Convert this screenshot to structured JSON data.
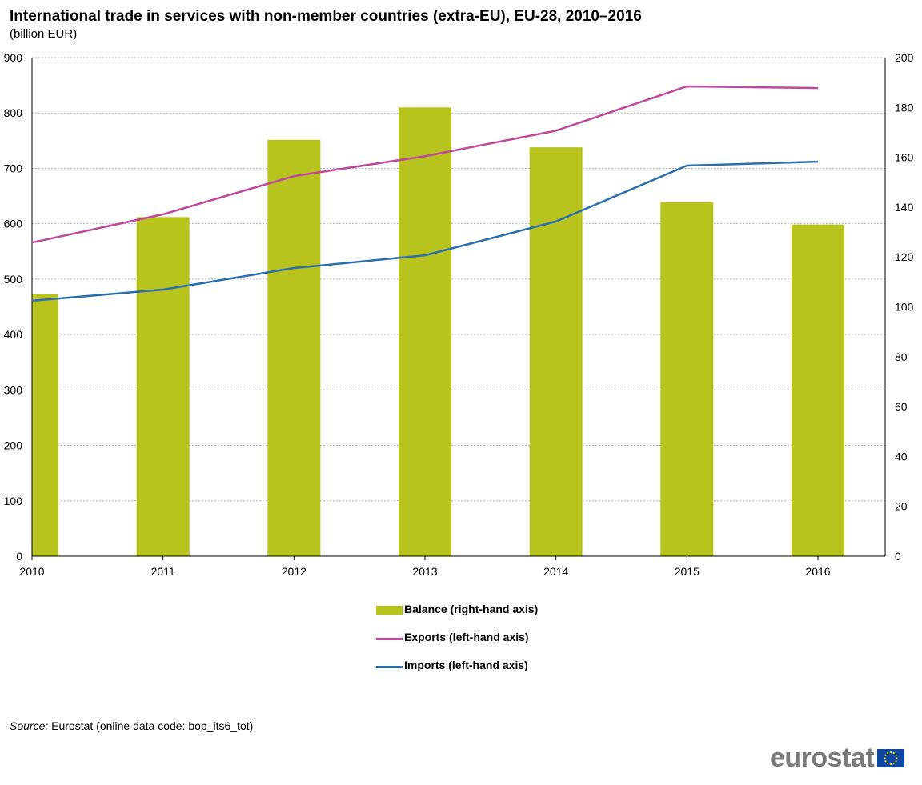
{
  "title": "International trade in services with non-member countries (extra-EU), EU-28, 2010–2016",
  "subtitle": "(billion EUR)",
  "chart_data": {
    "type": "bar",
    "title": "International trade in services with non-member countries (extra-EU), EU-28, 2010–2016",
    "subtitle": "(billion EUR)",
    "categories": [
      "2010",
      "2011",
      "2012",
      "2013",
      "2014",
      "2015",
      "2016"
    ],
    "left_axis": {
      "ylim": [
        0,
        900
      ],
      "ticks": [
        "0",
        "100",
        "200",
        "300",
        "400",
        "500",
        "600",
        "700",
        "800",
        "900"
      ]
    },
    "right_axis": {
      "ylim": [
        0,
        200
      ],
      "ticks": [
        "0",
        "20",
        "40",
        "60",
        "80",
        "100",
        "120",
        "140",
        "160",
        "180",
        "200"
      ]
    },
    "grid": true,
    "legend_position": "bottom-center",
    "series": [
      {
        "name": "Balance (right-hand axis)",
        "type": "bar",
        "axis": "right",
        "color": "#b9c31e",
        "values": [
          105,
          136,
          167,
          180,
          164,
          142,
          133
        ]
      },
      {
        "name": "Exports (left-hand axis)",
        "type": "line",
        "axis": "left",
        "color": "#c0489c",
        "values": [
          566,
          617,
          686,
          722,
          768,
          848,
          845
        ]
      },
      {
        "name": "Imports (left-hand axis)",
        "type": "line",
        "axis": "left",
        "color": "#2a6eb0",
        "values": [
          461,
          481,
          520,
          543,
          604,
          705,
          712
        ]
      }
    ]
  },
  "source": {
    "label": "Source:",
    "text": "Eurostat (online data code: bop_its6_tot)"
  },
  "logo": {
    "text": "eurostat"
  }
}
